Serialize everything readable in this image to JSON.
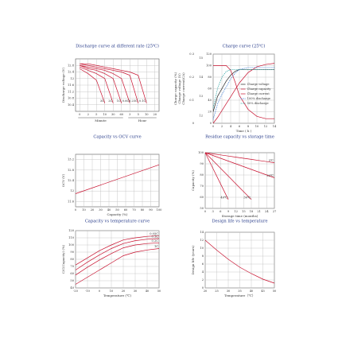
{
  "chart_data": [
    {
      "type": "line",
      "title": "Discharge curve at different rate (25℃)",
      "ylabel": "Discharge voltage (V)",
      "categories": [
        "0",
        "2",
        "5",
        "10",
        "30",
        "60",
        "3",
        "5",
        "10",
        "20"
      ],
      "x_groups": [
        {
          "label": "Minute",
          "count": 6
        },
        {
          "label": "Hour",
          "count": 4
        }
      ],
      "ylim": [
        10.0,
        13.2
      ],
      "yticks": [
        10.4,
        10.8,
        11.2,
        11.6,
        12,
        12.4,
        12.8
      ],
      "grid": true,
      "series": [
        {
          "name": "3C",
          "color": "#c8102e",
          "values": [
            12.6,
            12.3,
            11.9,
            10.5,
            null,
            null,
            null,
            null,
            null,
            null
          ]
        },
        {
          "name": "2C",
          "color": "#c8102e",
          "values": [
            12.7,
            12.5,
            12.3,
            12.0,
            10.5,
            null,
            null,
            null,
            null,
            null
          ]
        },
        {
          "name": "1C",
          "color": "#c8102e",
          "values": [
            12.8,
            12.6,
            12.5,
            12.3,
            12.0,
            10.5,
            null,
            null,
            null,
            null
          ]
        },
        {
          "name": "0.6C",
          "color": "#c8102e",
          "values": [
            12.8,
            12.7,
            12.6,
            12.5,
            12.3,
            12.0,
            10.5,
            null,
            null,
            null
          ]
        },
        {
          "name": "0.25C",
          "color": "#c8102e",
          "values": [
            12.9,
            12.8,
            12.7,
            12.6,
            12.5,
            12.4,
            12.2,
            10.5,
            null,
            null
          ]
        },
        {
          "name": "0.1C",
          "color": "#c8102e",
          "values": [
            12.9,
            12.9,
            12.8,
            12.7,
            12.6,
            12.5,
            12.4,
            12.2,
            10.5,
            null
          ]
        }
      ]
    },
    {
      "type": "line",
      "title": "Charge curve (25℃)",
      "xlabel": "Time ( h )",
      "ylabel": "Charge capacity (%)",
      "y2label": "Charge voltage (V)",
      "y3label": "Charge current(CA)",
      "x": [
        0,
        1,
        2,
        3,
        4,
        5,
        6,
        8,
        10,
        12,
        14
      ],
      "xlim": [
        0,
        14
      ],
      "xticks": [
        0,
        2,
        4,
        6,
        8,
        10,
        12,
        14
      ],
      "ylim": [
        0,
        120
      ],
      "yticks": [
        0,
        20,
        40,
        60,
        80,
        100,
        120
      ],
      "y2lim": [
        11.6,
        15.2
      ],
      "y2ticks": [
        12,
        13,
        14,
        15
      ],
      "y3lim": [
        0,
        0.3
      ],
      "y3ticks": [
        0,
        0.1,
        0.2,
        0.3
      ],
      "grid": true,
      "legend": "right",
      "series": [
        {
          "name": "Charge voltage",
          "color": "#222222",
          "axis": "y2",
          "values": [
            12.2,
            13.0,
            13.4,
            13.8,
            14.1,
            14.3,
            14.4,
            14.4,
            14.4,
            14.4,
            14.4
          ]
        },
        {
          "name": "Charge capacity",
          "color": "#c8102e",
          "values": [
            0,
            10,
            22,
            34,
            46,
            58,
            70,
            88,
            98,
            102,
            104
          ]
        },
        {
          "name": "Charge current",
          "color": "#c8102e",
          "axis": "y3",
          "values": [
            0.25,
            0.25,
            0.25,
            0.25,
            0.23,
            0.18,
            0.12,
            0.06,
            0.03,
            0.02,
            0.02
          ]
        },
        {
          "name": "100% discharge",
          "color": "#3a7bd5",
          "axis": "y2",
          "dashed": true,
          "values": [
            11.8,
            12.6,
            13.1,
            13.5,
            13.9,
            14.2,
            14.4,
            14.5,
            14.5,
            14.5,
            14.5
          ]
        },
        {
          "name": "50% discharge",
          "color": "#29a3a3",
          "axis": "y2",
          "dashed": true,
          "values": [
            12.4,
            13.4,
            14.0,
            14.3,
            14.4,
            14.4,
            14.4,
            14.4,
            14.4,
            14.4,
            14.4
          ]
        }
      ]
    },
    {
      "type": "line",
      "title": "Capacity vs OCV curve",
      "xlabel": "Capacity (%)",
      "ylabel": "OCV (V)",
      "x": [
        0,
        100
      ],
      "xlim": [
        0,
        100
      ],
      "xticks": [
        0,
        10,
        20,
        30,
        40,
        50,
        60,
        70,
        80,
        90,
        100
      ],
      "ylim": [
        11.4,
        13.4
      ],
      "yticks": [
        11.6,
        12,
        12.4,
        12.8,
        13.2
      ],
      "grid": true,
      "series": [
        {
          "color": "#c8102e",
          "values": [
            11.9,
            13.0
          ]
        }
      ]
    },
    {
      "type": "line",
      "title": "Residue capacity vs storage time",
      "xlabel": "Storage time (months)",
      "ylabel": "Capacity (%)",
      "x": [
        0,
        3,
        6,
        9,
        12,
        15,
        18,
        21,
        24,
        27
      ],
      "xlim": [
        0,
        27
      ],
      "xticks": [
        0,
        3,
        6,
        9,
        12,
        15,
        18,
        21,
        24,
        27
      ],
      "ylim": [
        50,
        100
      ],
      "yticks": [
        50,
        60,
        70,
        80,
        90,
        100
      ],
      "grid": true,
      "series": [
        {
          "name": "40℃",
          "color": "#c8102e",
          "values": [
            100,
            86,
            72,
            58,
            null,
            null,
            null,
            null,
            null,
            null
          ]
        },
        {
          "name": "30℃",
          "color": "#c8102e",
          "values": [
            100,
            93,
            86,
            79,
            72,
            65,
            58,
            null,
            null,
            null
          ]
        },
        {
          "name": "20℃",
          "color": "#c8102e",
          "values": [
            100,
            97.5,
            95,
            92.5,
            90,
            87.5,
            85,
            82.5,
            80,
            77.5
          ]
        },
        {
          "name": "5℃",
          "color": "#c8102e",
          "values": [
            100,
            99,
            98,
            97,
            96,
            95,
            94,
            93,
            92,
            91
          ]
        }
      ]
    },
    {
      "type": "line",
      "title": "Capacity vs temperature curve",
      "xlabel": "Temperature (℃)",
      "ylabel": "C/C(Capacity) (%)",
      "x": [
        -20,
        -10,
        0,
        10,
        20,
        30,
        40,
        50
      ],
      "xlim": [
        -20,
        50
      ],
      "xticks": [
        -20,
        -10,
        0,
        10,
        20,
        30,
        40,
        50
      ],
      "ylim": [
        40,
        120
      ],
      "yticks": [
        40,
        50,
        60,
        70,
        80,
        90,
        100,
        110,
        120
      ],
      "grid": true,
      "series": [
        {
          "name": "0.05C",
          "color": "#c8102e",
          "values": [
            72,
            82,
            92,
            100,
            107,
            110,
            112,
            113
          ]
        },
        {
          "name": "0.1C",
          "color": "#c8102e",
          "values": [
            65,
            76,
            86,
            95,
            102,
            106,
            108,
            109
          ]
        },
        {
          "name": "0.2C",
          "color": "#c8102e",
          "values": [
            58,
            69,
            79,
            88,
            96,
            100,
            102,
            103
          ]
        },
        {
          "name": "1C",
          "color": "#c8102e",
          "values": [
            45,
            55,
            65,
            75,
            85,
            90,
            93,
            95
          ]
        }
      ]
    },
    {
      "type": "line",
      "title": "Design life  vs  temperature",
      "xlabel": "Temperature（℃）",
      "ylabel": "Design life (years)",
      "x": [
        20,
        25,
        30,
        35,
        40,
        45,
        50
      ],
      "xlim": [
        20,
        50
      ],
      "xticks": [
        20,
        25,
        30,
        35,
        40,
        45,
        50
      ],
      "ylim": [
        0,
        14
      ],
      "yticks": [
        0,
        2,
        4,
        6,
        8,
        10,
        12,
        14
      ],
      "grid": true,
      "series": [
        {
          "color": "#c8102e",
          "values": [
            12,
            9.5,
            7.2,
            5.2,
            3.6,
            2.2,
            1.2
          ]
        }
      ]
    }
  ]
}
